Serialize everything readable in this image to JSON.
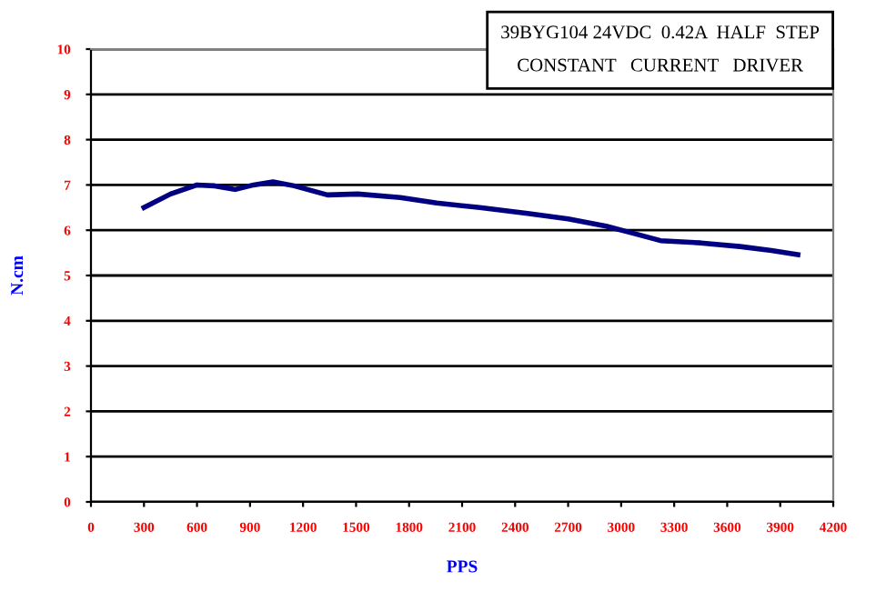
{
  "chart_data": {
    "type": "line",
    "title": "39BYG104 24VDC  0.42A  HALF  STEP\nCONSTANT   CURRENT   DRIVER",
    "xlabel": "PPS",
    "ylabel": "N.cm",
    "x": [
      300,
      450,
      600,
      700,
      816,
      920,
      1030,
      1150,
      1338,
      1510,
      1750,
      1956,
      2200,
      2471,
      2700,
      2915,
      3050,
      3223,
      3450,
      3672,
      3850,
      4000
    ],
    "series": [
      {
        "color": "#000080",
        "values": [
          6.5,
          6.8,
          7.0,
          6.98,
          6.9,
          7.0,
          7.07,
          6.98,
          6.78,
          6.8,
          6.72,
          6.6,
          6.5,
          6.37,
          6.25,
          6.09,
          5.95,
          5.77,
          5.72,
          5.64,
          5.55,
          5.46
        ]
      }
    ],
    "xlim": [
      0,
      4200
    ],
    "xticks": [
      0,
      300,
      600,
      900,
      1200,
      1500,
      1800,
      2100,
      2400,
      2700,
      3000,
      3300,
      3600,
      3900,
      4200
    ],
    "ylim": [
      0,
      10
    ],
    "yticks": [
      0,
      1,
      2,
      3,
      4,
      5,
      6,
      7,
      8,
      9,
      10
    ],
    "grid": "y",
    "marker": "none",
    "line_style": "solid"
  }
}
